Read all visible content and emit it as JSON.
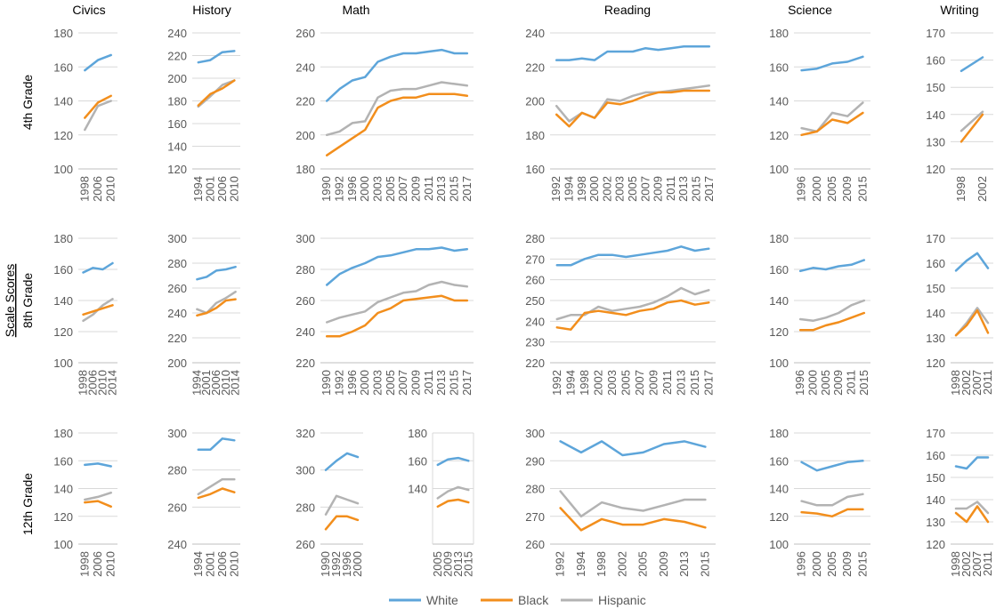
{
  "y_axis_title": "Scale Scores",
  "column_titles": [
    "Civics",
    "History",
    "Math",
    "Reading",
    "Science",
    "Writing"
  ],
  "row_labels": [
    "4th Grade",
    "8th Grade",
    "12th Grade"
  ],
  "legend": [
    {
      "name": "White",
      "color": "#5DA5DA"
    },
    {
      "name": "Black",
      "color": "#F28E1C"
    },
    {
      "name": "Hispanic",
      "color": "#B3B3B3"
    }
  ],
  "chart_data": [
    {
      "type": "line",
      "row": "4th Grade",
      "subject": "Civics",
      "categories": [
        "1998",
        "2006",
        "2010"
      ],
      "ylim": [
        100,
        180
      ],
      "yticks": [
        100,
        120,
        140,
        160,
        180
      ],
      "series": [
        {
          "name": "White",
          "values": [
            158,
            164,
            167
          ]
        },
        {
          "name": "Black",
          "values": [
            130,
            139,
            143
          ]
        },
        {
          "name": "Hispanic",
          "values": [
            123,
            137,
            140
          ]
        }
      ]
    },
    {
      "type": "line",
      "row": "4th Grade",
      "subject": "History",
      "categories": [
        "1994",
        "2001",
        "2006",
        "2010"
      ],
      "ylim": [
        120,
        240
      ],
      "yticks": [
        120,
        140,
        160,
        180,
        200,
        220,
        240
      ],
      "series": [
        {
          "name": "White",
          "values": [
            214,
            216,
            223,
            224
          ]
        },
        {
          "name": "Black",
          "values": [
            176,
            186,
            191,
            198
          ]
        },
        {
          "name": "Hispanic",
          "values": [
            175,
            184,
            194,
            198
          ]
        }
      ]
    },
    {
      "type": "line",
      "row": "4th Grade",
      "subject": "Math",
      "categories": [
        "1990",
        "1992",
        "1996",
        "2000",
        "2003",
        "2005",
        "2007",
        "2009",
        "2011",
        "2013",
        "2015",
        "2017"
      ],
      "ylim": [
        180,
        260
      ],
      "yticks": [
        180,
        200,
        220,
        240,
        260
      ],
      "series": [
        {
          "name": "White",
          "values": [
            220,
            227,
            232,
            234,
            243,
            246,
            248,
            248,
            249,
            250,
            248,
            248
          ]
        },
        {
          "name": "Black",
          "values": [
            188,
            193,
            198,
            203,
            216,
            220,
            222,
            222,
            224,
            224,
            224,
            223
          ]
        },
        {
          "name": "Hispanic",
          "values": [
            200,
            202,
            207,
            208,
            222,
            226,
            227,
            227,
            229,
            231,
            230,
            229
          ]
        }
      ]
    },
    {
      "type": "line",
      "row": "4th Grade",
      "subject": "Reading",
      "categories": [
        "1992",
        "1994",
        "1998",
        "2000",
        "2002",
        "2003",
        "2005",
        "2007",
        "2009",
        "2011",
        "2013",
        "2015",
        "2017"
      ],
      "ylim": [
        160,
        240
      ],
      "yticks": [
        160,
        180,
        200,
        220,
        240
      ],
      "series": [
        {
          "name": "White",
          "values": [
            224,
            224,
            225,
            224,
            229,
            229,
            229,
            231,
            230,
            231,
            232,
            232,
            232
          ]
        },
        {
          "name": "Black",
          "values": [
            192,
            185,
            193,
            190,
            199,
            198,
            200,
            203,
            205,
            205,
            206,
            206,
            206
          ]
        },
        {
          "name": "Hispanic",
          "values": [
            197,
            188,
            193,
            190,
            201,
            200,
            203,
            205,
            205,
            206,
            207,
            208,
            209
          ]
        }
      ]
    },
    {
      "type": "line",
      "row": "4th Grade",
      "subject": "Science",
      "categories": [
        "1996",
        "2000",
        "2005",
        "2009",
        "2015"
      ],
      "ylim": [
        100,
        180
      ],
      "yticks": [
        100,
        120,
        140,
        160,
        180
      ],
      "series": [
        {
          "name": "White",
          "values": [
            158,
            159,
            162,
            163,
            166
          ]
        },
        {
          "name": "Black",
          "values": [
            120,
            122,
            129,
            127,
            133
          ]
        },
        {
          "name": "Hispanic",
          "values": [
            124,
            122,
            133,
            131,
            139
          ]
        }
      ]
    },
    {
      "type": "line",
      "row": "4th Grade",
      "subject": "Writing",
      "categories": [
        "1998",
        "2002"
      ],
      "ylim": [
        120,
        170
      ],
      "yticks": [
        120,
        130,
        140,
        150,
        160,
        170
      ],
      "series": [
        {
          "name": "White",
          "values": [
            156,
            161
          ]
        },
        {
          "name": "Black",
          "values": [
            130,
            140
          ]
        },
        {
          "name": "Hispanic",
          "values": [
            134,
            141
          ]
        }
      ]
    },
    {
      "type": "line",
      "row": "8th Grade",
      "subject": "Civics",
      "categories": [
        "1998",
        "2006",
        "2010",
        "2014"
      ],
      "ylim": [
        100,
        180
      ],
      "yticks": [
        100,
        120,
        140,
        160,
        180
      ],
      "series": [
        {
          "name": "White",
          "values": [
            158,
            161,
            160,
            164
          ]
        },
        {
          "name": "Black",
          "values": [
            131,
            133,
            135,
            137
          ]
        },
        {
          "name": "Hispanic",
          "values": [
            127,
            131,
            137,
            141
          ]
        }
      ]
    },
    {
      "type": "line",
      "row": "8th Grade",
      "subject": "History",
      "categories": [
        "1994",
        "2001",
        "2006",
        "2010",
        "2014"
      ],
      "ylim": [
        200,
        300
      ],
      "yticks": [
        200,
        220,
        240,
        260,
        280,
        300
      ],
      "series": [
        {
          "name": "White",
          "values": [
            267,
            269,
            274,
            275,
            277
          ]
        },
        {
          "name": "Black",
          "values": [
            238,
            240,
            244,
            250,
            251
          ]
        },
        {
          "name": "Hispanic",
          "values": [
            243,
            240,
            248,
            252,
            257
          ]
        }
      ]
    },
    {
      "type": "line",
      "row": "8th Grade",
      "subject": "Math",
      "categories": [
        "1990",
        "1992",
        "1996",
        "2000",
        "2003",
        "2005",
        "2007",
        "2009",
        "2011",
        "2013",
        "2015",
        "2017"
      ],
      "ylim": [
        220,
        300
      ],
      "yticks": [
        220,
        240,
        260,
        280,
        300
      ],
      "series": [
        {
          "name": "White",
          "values": [
            270,
            277,
            281,
            284,
            288,
            289,
            291,
            293,
            293,
            294,
            292,
            293
          ]
        },
        {
          "name": "Black",
          "values": [
            237,
            237,
            240,
            244,
            252,
            255,
            260,
            261,
            262,
            263,
            260,
            260
          ]
        },
        {
          "name": "Hispanic",
          "values": [
            246,
            249,
            251,
            253,
            259,
            262,
            265,
            266,
            270,
            272,
            270,
            269
          ]
        }
      ]
    },
    {
      "type": "line",
      "row": "8th Grade",
      "subject": "Reading",
      "categories": [
        "1992",
        "1994",
        "1998",
        "2002",
        "2003",
        "2005",
        "2007",
        "2009",
        "2011",
        "2013",
        "2015",
        "2017"
      ],
      "ylim": [
        220,
        280
      ],
      "yticks": [
        220,
        230,
        240,
        250,
        260,
        270,
        280
      ],
      "series": [
        {
          "name": "White",
          "values": [
            267,
            267,
            270,
            272,
            272,
            271,
            272,
            273,
            274,
            276,
            274,
            275
          ]
        },
        {
          "name": "Black",
          "values": [
            237,
            236,
            244,
            245,
            244,
            243,
            245,
            246,
            249,
            250,
            248,
            249
          ]
        },
        {
          "name": "Hispanic",
          "values": [
            241,
            243,
            243,
            247,
            245,
            246,
            247,
            249,
            252,
            256,
            253,
            255
          ]
        }
      ]
    },
    {
      "type": "line",
      "row": "8th Grade",
      "subject": "Science",
      "categories": [
        "1996",
        "2000",
        "2005",
        "2009",
        "2011",
        "2015"
      ],
      "ylim": [
        100,
        180
      ],
      "yticks": [
        100,
        120,
        140,
        160,
        180
      ],
      "series": [
        {
          "name": "White",
          "values": [
            159,
            161,
            160,
            162,
            163,
            166
          ]
        },
        {
          "name": "Black",
          "values": [
            121,
            121,
            124,
            126,
            129,
            132
          ]
        },
        {
          "name": "Hispanic",
          "values": [
            128,
            127,
            129,
            132,
            137,
            140
          ]
        }
      ]
    },
    {
      "type": "line",
      "row": "8th Grade",
      "subject": "Writing",
      "categories": [
        "1998",
        "2002",
        "2007",
        "2011"
      ],
      "ylim": [
        120,
        170
      ],
      "yticks": [
        120,
        130,
        140,
        150,
        160,
        170
      ],
      "series": [
        {
          "name": "White",
          "values": [
            157,
            161,
            164,
            158
          ]
        },
        {
          "name": "Black",
          "values": [
            131,
            135,
            141,
            132
          ]
        },
        {
          "name": "Hispanic",
          "values": [
            131,
            136,
            142,
            136
          ]
        }
      ]
    },
    {
      "type": "line",
      "row": "12th Grade",
      "subject": "Civics",
      "categories": [
        "1998",
        "2006",
        "2010"
      ],
      "ylim": [
        100,
        180
      ],
      "yticks": [
        100,
        120,
        140,
        160,
        180
      ],
      "series": [
        {
          "name": "White",
          "values": [
            157,
            158,
            156
          ]
        },
        {
          "name": "Black",
          "values": [
            130,
            131,
            127
          ]
        },
        {
          "name": "Hispanic",
          "values": [
            132,
            134,
            137
          ]
        }
      ]
    },
    {
      "type": "line",
      "row": "12th Grade",
      "subject": "History",
      "categories": [
        "1994",
        "2001",
        "2006",
        "2010"
      ],
      "ylim": [
        240,
        300
      ],
      "yticks": [
        240,
        260,
        280,
        300
      ],
      "series": [
        {
          "name": "White",
          "values": [
            291,
            291,
            297,
            296
          ]
        },
        {
          "name": "Black",
          "values": [
            265,
            267,
            270,
            268
          ]
        },
        {
          "name": "Hispanic",
          "values": [
            267,
            271,
            275,
            275
          ]
        }
      ]
    },
    {
      "type": "line",
      "row": "12th Grade",
      "subject": "Math",
      "panel": "a",
      "categories": [
        "1990",
        "1992",
        "1996",
        "2000"
      ],
      "ylim": [
        260,
        320
      ],
      "yticks": [
        260,
        280,
        300,
        320
      ],
      "series": [
        {
          "name": "White",
          "values": [
            300,
            305,
            309,
            307
          ]
        },
        {
          "name": "Black",
          "values": [
            268,
            275,
            275,
            273
          ]
        },
        {
          "name": "Hispanic",
          "values": [
            276,
            286,
            284,
            282
          ]
        }
      ]
    },
    {
      "type": "line",
      "row": "12th Grade",
      "subject": "Math",
      "panel": "b",
      "categories": [
        "2005",
        "2009",
        "2013",
        "2015"
      ],
      "ylim": [
        100,
        180
      ],
      "yticks": [
        140,
        160,
        180
      ],
      "series": [
        {
          "name": "White",
          "values": [
            157,
            161,
            162,
            160
          ]
        },
        {
          "name": "Black",
          "values": [
            127,
            131,
            132,
            130
          ]
        },
        {
          "name": "Hispanic",
          "values": [
            133,
            138,
            141,
            139
          ]
        }
      ]
    },
    {
      "type": "line",
      "row": "12th Grade",
      "subject": "Reading",
      "categories": [
        "1992",
        "1994",
        "1998",
        "2002",
        "2005",
        "2009",
        "2013",
        "2015"
      ],
      "ylim": [
        260,
        300
      ],
      "yticks": [
        260,
        270,
        280,
        290,
        300
      ],
      "series": [
        {
          "name": "White",
          "values": [
            297,
            293,
            297,
            292,
            293,
            296,
            297,
            295
          ]
        },
        {
          "name": "Black",
          "values": [
            273,
            265,
            269,
            267,
            267,
            269,
            268,
            266
          ]
        },
        {
          "name": "Hispanic",
          "values": [
            279,
            270,
            275,
            273,
            272,
            274,
            276,
            276
          ]
        }
      ]
    },
    {
      "type": "line",
      "row": "12th Grade",
      "subject": "Science",
      "categories": [
        "1996",
        "2000",
        "2005",
        "2009",
        "2015"
      ],
      "ylim": [
        100,
        180
      ],
      "yticks": [
        100,
        120,
        140,
        160,
        180
      ],
      "series": [
        {
          "name": "White",
          "values": [
            159,
            153,
            156,
            159,
            160
          ]
        },
        {
          "name": "Black",
          "values": [
            123,
            122,
            120,
            125,
            125
          ]
        },
        {
          "name": "Hispanic",
          "values": [
            131,
            128,
            128,
            134,
            136
          ]
        }
      ]
    },
    {
      "type": "line",
      "row": "12th Grade",
      "subject": "Writing",
      "categories": [
        "1998",
        "2002",
        "2007",
        "2011"
      ],
      "ylim": [
        120,
        170
      ],
      "yticks": [
        120,
        130,
        140,
        150,
        160,
        170
      ],
      "series": [
        {
          "name": "White",
          "values": [
            155,
            154,
            159,
            159
          ]
        },
        {
          "name": "Black",
          "values": [
            134,
            130,
            137,
            130
          ]
        },
        {
          "name": "Hispanic",
          "values": [
            136,
            136,
            139,
            134
          ]
        }
      ]
    }
  ]
}
